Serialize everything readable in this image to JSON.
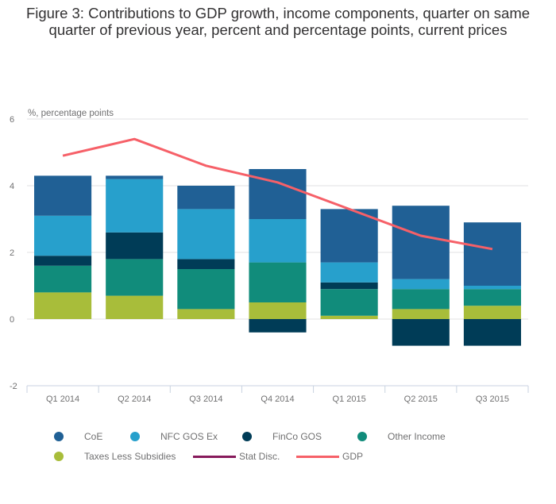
{
  "chart_data": {
    "type": "bar",
    "stacked": true,
    "title": "Figure 3: Contributions to GDP growth, income components, quarter on same quarter of previous year, percent and percentage points, current prices",
    "xlabel": "",
    "ylabel": "%, percentage points",
    "ylim": [
      -2,
      6
    ],
    "yticks": [
      -2,
      0,
      2,
      4,
      6
    ],
    "grid": true,
    "legend_position": "bottom",
    "categories": [
      "Q1 2014",
      "Q2 2014",
      "Q3 2014",
      "Q4 2014",
      "Q1 2015",
      "Q2 2015",
      "Q3 2015"
    ],
    "series": [
      {
        "name": "Taxes Less Subsidies",
        "type": "bar",
        "color": "#a8bd3a",
        "values": [
          0.8,
          0.7,
          0.3,
          0.5,
          0.1,
          0.3,
          0.4
        ]
      },
      {
        "name": "Other Income",
        "type": "bar",
        "color": "#118c7b",
        "values": [
          0.8,
          1.1,
          1.2,
          1.2,
          0.8,
          0.6,
          0.5
        ]
      },
      {
        "name": "FinCo GOS",
        "type": "bar",
        "color": "#003c57",
        "values": [
          0.3,
          0.8,
          0.3,
          -0.4,
          0.2,
          -0.8,
          -0.8
        ]
      },
      {
        "name": "NFC GOS Ex",
        "type": "bar",
        "color": "#27a0cc",
        "values": [
          1.2,
          1.6,
          1.5,
          1.3,
          0.6,
          0.3,
          0.1
        ]
      },
      {
        "name": "CoE",
        "type": "bar",
        "color": "#206095",
        "values": [
          1.2,
          0.1,
          0.7,
          1.5,
          1.6,
          2.2,
          1.9
        ]
      },
      {
        "name": "Stat Disc.",
        "type": "line",
        "color": "#871a5b",
        "values": []
      },
      {
        "name": "GDP",
        "type": "line",
        "color": "#f66068",
        "values": [
          4.9,
          5.4,
          4.6,
          4.1,
          3.3,
          2.5,
          2.1
        ]
      }
    ]
  },
  "legend": {
    "items": [
      {
        "label": "CoE",
        "kind": "dot",
        "color": "#206095"
      },
      {
        "label": "NFC GOS Ex",
        "kind": "dot",
        "color": "#27a0cc"
      },
      {
        "label": "FinCo GOS",
        "kind": "dot",
        "color": "#003c57"
      },
      {
        "label": "Other Income",
        "kind": "dot",
        "color": "#118c7b"
      },
      {
        "label": "Taxes Less Subsidies",
        "kind": "dot",
        "color": "#a8bd3a"
      },
      {
        "label": "Stat Disc.",
        "kind": "line",
        "color": "#871a5b"
      },
      {
        "label": "GDP",
        "kind": "line",
        "color": "#f66068"
      }
    ]
  }
}
